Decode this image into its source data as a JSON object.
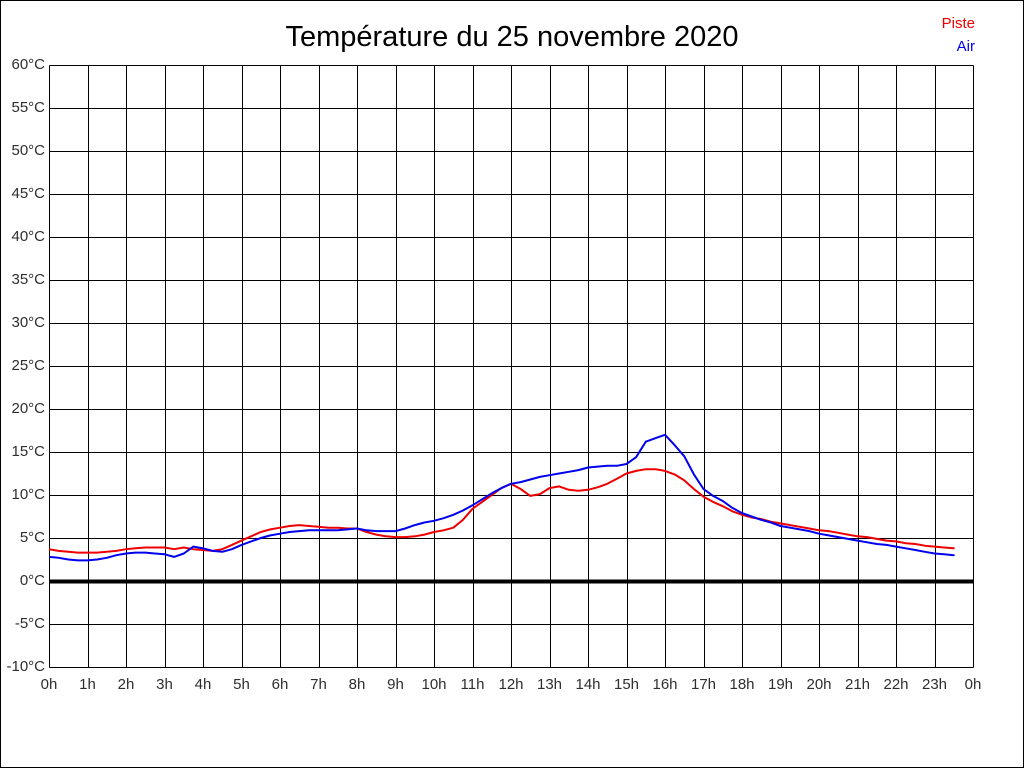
{
  "page": {
    "background": "#ffffff",
    "border_color": "#000000"
  },
  "chart_data": {
    "type": "line",
    "title": "Température du 25 novembre 2020",
    "xlabel": "",
    "ylabel": "",
    "xlim": [
      0,
      24
    ],
    "ylim": [
      -10,
      60
    ],
    "grid": true,
    "grid_color": "#000000",
    "background": "#ffffff",
    "legend_position": "top-right",
    "zero_line": {
      "value": 0,
      "color": "#000000",
      "width": 4
    },
    "x_tick_hours": [
      0,
      1,
      2,
      3,
      4,
      5,
      6,
      7,
      8,
      9,
      10,
      11,
      12,
      13,
      14,
      15,
      16,
      17,
      18,
      19,
      20,
      21,
      22,
      23,
      24
    ],
    "x_tick_labels": [
      "0h",
      "1h",
      "2h",
      "3h",
      "4h",
      "5h",
      "6h",
      "7h",
      "8h",
      "9h",
      "10h",
      "11h",
      "12h",
      "13h",
      "14h",
      "15h",
      "16h",
      "17h",
      "18h",
      "19h",
      "20h",
      "21h",
      "22h",
      "23h",
      "0h"
    ],
    "y_tick_values": [
      -10,
      -5,
      0,
      5,
      10,
      15,
      20,
      25,
      30,
      35,
      40,
      45,
      50,
      55,
      60
    ],
    "y_tick_labels": [
      "-10°C",
      "-5°C",
      "0°C",
      "5°C",
      "10°C",
      "15°C",
      "20°C",
      "25°C",
      "30°C",
      "35°C",
      "40°C",
      "45°C",
      "50°C",
      "55°C",
      "60°C"
    ],
    "series": [
      {
        "name": "Piste",
        "color": "#ee0000",
        "x_start": 0,
        "x_step": 0.25,
        "values": [
          3.7,
          3.5,
          3.4,
          3.3,
          3.3,
          3.3,
          3.4,
          3.5,
          3.7,
          3.8,
          3.9,
          3.9,
          3.9,
          3.7,
          3.9,
          3.7,
          3.6,
          3.5,
          3.7,
          4.2,
          4.7,
          5.2,
          5.7,
          6.0,
          6.2,
          6.4,
          6.5,
          6.4,
          6.3,
          6.2,
          6.2,
          6.1,
          6.1,
          5.7,
          5.4,
          5.2,
          5.1,
          5.1,
          5.2,
          5.4,
          5.7,
          5.9,
          6.2,
          7.1,
          8.4,
          9.2,
          10.0,
          10.8,
          11.3,
          10.7,
          9.9,
          10.1,
          10.8,
          11.0,
          10.6,
          10.5,
          10.6,
          10.9,
          11.3,
          11.9,
          12.5,
          12.8,
          13.0,
          13.0,
          12.8,
          12.4,
          11.7,
          10.7,
          9.8,
          9.2,
          8.7,
          8.1,
          7.7,
          7.4,
          7.2,
          6.9,
          6.7,
          6.5,
          6.3,
          6.1,
          5.9,
          5.8,
          5.6,
          5.4,
          5.2,
          5.1,
          4.9,
          4.7,
          4.6,
          4.4,
          4.3,
          4.1,
          4.0,
          3.9,
          3.8
        ]
      },
      {
        "name": "Air",
        "color": "#0000ee",
        "x_start": 0,
        "x_step": 0.25,
        "values": [
          2.8,
          2.7,
          2.5,
          2.4,
          2.4,
          2.5,
          2.7,
          3.0,
          3.2,
          3.3,
          3.3,
          3.2,
          3.1,
          2.8,
          3.2,
          4.0,
          3.8,
          3.5,
          3.4,
          3.7,
          4.2,
          4.6,
          5.0,
          5.3,
          5.5,
          5.7,
          5.8,
          5.9,
          5.9,
          5.9,
          5.9,
          6.0,
          6.1,
          5.9,
          5.8,
          5.8,
          5.8,
          6.1,
          6.5,
          6.8,
          7.0,
          7.3,
          7.7,
          8.2,
          8.8,
          9.5,
          10.2,
          10.8,
          11.3,
          11.5,
          11.8,
          12.1,
          12.3,
          12.5,
          12.7,
          12.9,
          13.2,
          13.3,
          13.4,
          13.4,
          13.6,
          14.4,
          16.2,
          16.6,
          17.0,
          15.8,
          14.5,
          12.4,
          10.7,
          9.9,
          9.3,
          8.5,
          7.9,
          7.5,
          7.1,
          6.8,
          6.4,
          6.2,
          6.0,
          5.8,
          5.5,
          5.3,
          5.1,
          4.9,
          4.7,
          4.5,
          4.3,
          4.2,
          4.0,
          3.8,
          3.6,
          3.4,
          3.2,
          3.1,
          3.0
        ]
      }
    ]
  }
}
